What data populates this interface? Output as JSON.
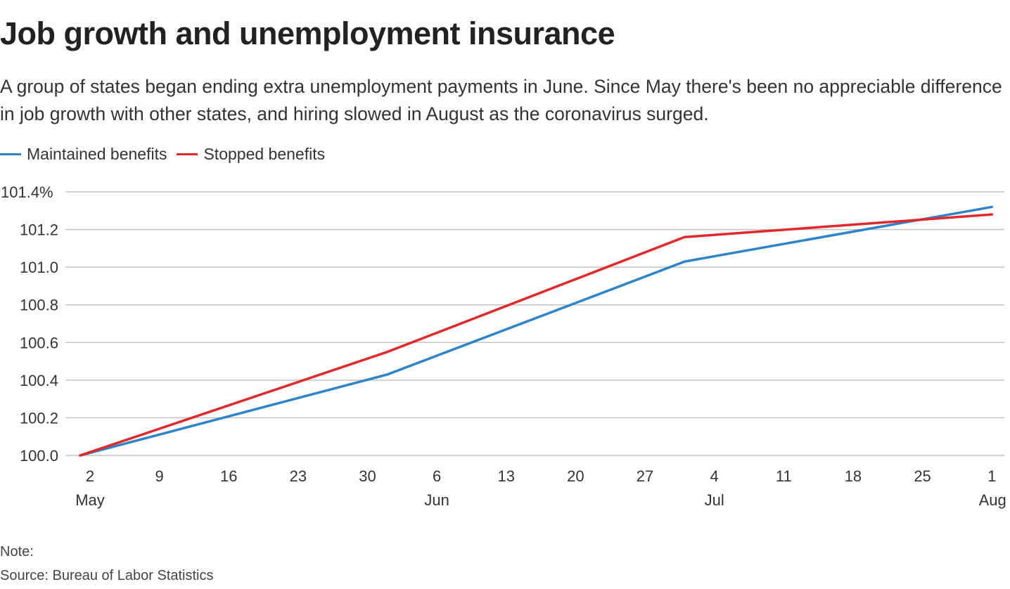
{
  "chart_data": {
    "type": "line",
    "title": "Job growth and unemployment insurance",
    "subtitle": "A group of states began ending extra unemployment payments in June. Since May there's been no appreciable difference in job growth with other states, and hiring slowed in August as the coronavirus surged.",
    "x": [
      "2021-05-01",
      "2021-06-01",
      "2021-07-01",
      "2021-08-01"
    ],
    "series": [
      {
        "name": "Maintained benefits",
        "color": "#2e84c6",
        "values": [
          100.0,
          100.43,
          101.03,
          101.32
        ]
      },
      {
        "name": "Stopped benefits",
        "color": "#e0292b",
        "values": [
          100.0,
          100.55,
          101.16,
          101.28
        ]
      }
    ],
    "ylim": [
      100.0,
      101.4
    ],
    "yticks": [
      100.0,
      100.2,
      100.4,
      100.6,
      100.8,
      101.0,
      101.2,
      101.4
    ],
    "ytick_labels": [
      "100.0",
      "100.2",
      "100.4",
      "100.6",
      "100.8",
      "101.0",
      "101.2",
      "101.4%"
    ],
    "xticks": [
      {
        "date": "2021-05-02",
        "label": "2",
        "month": "May"
      },
      {
        "date": "2021-05-09",
        "label": "9"
      },
      {
        "date": "2021-05-16",
        "label": "16"
      },
      {
        "date": "2021-05-23",
        "label": "23"
      },
      {
        "date": "2021-05-30",
        "label": "30"
      },
      {
        "date": "2021-06-06",
        "label": "6",
        "month": "Jun"
      },
      {
        "date": "2021-06-13",
        "label": "13"
      },
      {
        "date": "2021-06-20",
        "label": "20"
      },
      {
        "date": "2021-06-27",
        "label": "27"
      },
      {
        "date": "2021-07-04",
        "label": "4",
        "month": "Jul"
      },
      {
        "date": "2021-07-11",
        "label": "11"
      },
      {
        "date": "2021-07-18",
        "label": "18"
      },
      {
        "date": "2021-07-25",
        "label": "25"
      },
      {
        "date": "2021-08-01",
        "label": "1",
        "month": "Aug"
      }
    ],
    "grid": true,
    "legend_placement": "top-left"
  },
  "footer": {
    "note": "Note:",
    "source": "Source: Bureau of Labor Statistics"
  }
}
